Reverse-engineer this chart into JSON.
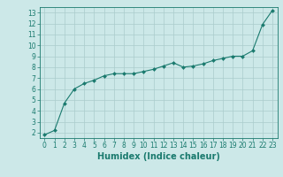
{
  "x": [
    0,
    1,
    2,
    3,
    4,
    5,
    6,
    7,
    8,
    9,
    10,
    11,
    12,
    13,
    14,
    15,
    16,
    17,
    18,
    19,
    20,
    21,
    22,
    23
  ],
  "y": [
    1.8,
    2.2,
    4.7,
    6.0,
    6.5,
    6.8,
    7.2,
    7.4,
    7.4,
    7.4,
    7.6,
    7.8,
    8.1,
    8.4,
    8.0,
    8.1,
    8.3,
    8.6,
    8.8,
    9.0,
    9.0,
    9.5,
    11.9,
    13.2
  ],
  "line_color": "#1a7a6e",
  "marker": "D",
  "marker_size": 2,
  "background_color": "#cce8e8",
  "grid_color": "#aacccc",
  "xlabel": "Humidex (Indice chaleur)",
  "xlim": [
    -0.5,
    23.5
  ],
  "ylim": [
    1.5,
    13.5
  ],
  "yticks": [
    2,
    3,
    4,
    5,
    6,
    7,
    8,
    9,
    10,
    11,
    12,
    13
  ],
  "xticks": [
    0,
    1,
    2,
    3,
    4,
    5,
    6,
    7,
    8,
    9,
    10,
    11,
    12,
    13,
    14,
    15,
    16,
    17,
    18,
    19,
    20,
    21,
    22,
    23
  ],
  "tick_color": "#1a7a6e",
  "axis_color": "#1a7a6e",
  "tick_fontsize": 5.5,
  "xlabel_fontsize": 7.0,
  "linewidth": 0.8
}
